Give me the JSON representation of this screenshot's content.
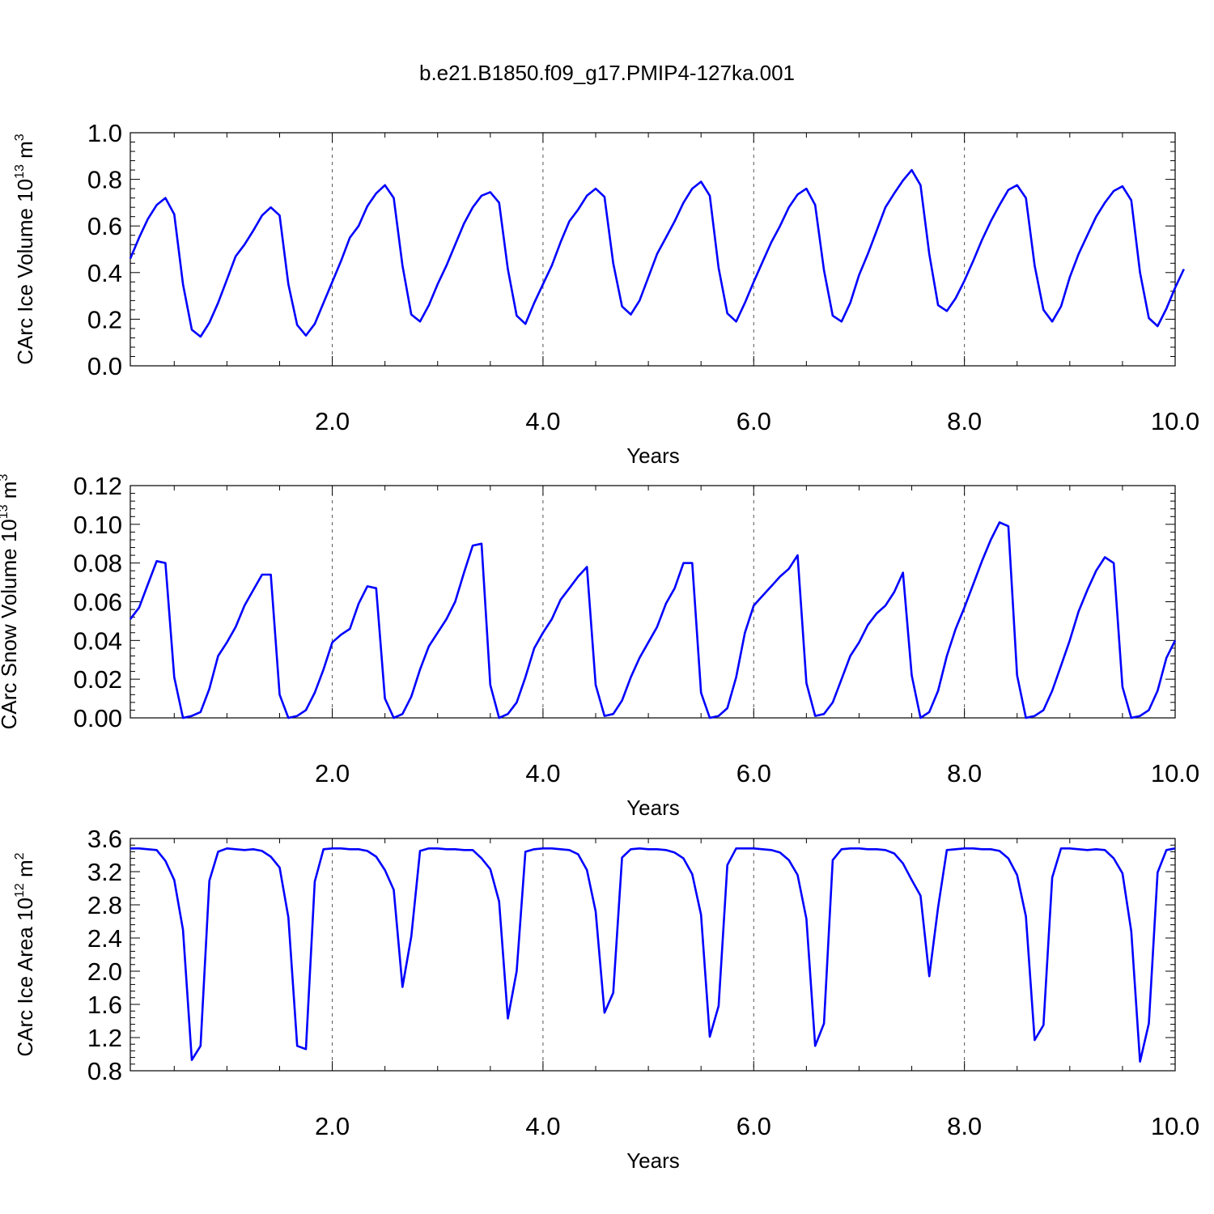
{
  "title": "b.e21.B1850.f09_g17.PMIP4-127ka.001",
  "colors": {
    "line": "#0000ff",
    "axis": "#000000",
    "grid": "#555555"
  },
  "chart_data": [
    {
      "type": "line",
      "ylabel": "CArc Ice Volume 10",
      "ylabel_sup": "13",
      "ylabel_unit": " m",
      "ylabel_unit_sup": "3",
      "xlabel": "Years",
      "xlim": [
        0.083,
        10.0
      ],
      "ylim": [
        0.0,
        1.0
      ],
      "xticks": [
        "2.0",
        "4.0",
        "6.0",
        "8.0",
        "10.0"
      ],
      "yticks": [
        "0.0",
        "0.2",
        "0.4",
        "0.6",
        "0.8",
        "1.0"
      ],
      "grid": "vertical dashed at major x ticks",
      "series": [
        {
          "values": [
            0.46,
            0.55,
            0.63,
            0.69,
            0.72,
            0.65,
            0.35,
            0.155,
            0.125,
            0.185,
            0.27,
            0.37,
            0.47,
            0.52,
            0.58,
            0.645,
            0.68,
            0.645,
            0.35,
            0.175,
            0.13,
            0.18,
            0.27,
            0.36,
            0.45,
            0.55,
            0.6,
            0.685,
            0.74,
            0.775,
            0.72,
            0.43,
            0.22,
            0.19,
            0.26,
            0.35,
            0.43,
            0.52,
            0.61,
            0.68,
            0.73,
            0.745,
            0.7,
            0.415,
            0.215,
            0.18,
            0.27,
            0.35,
            0.43,
            0.53,
            0.62,
            0.67,
            0.73,
            0.76,
            0.725,
            0.44,
            0.255,
            0.22,
            0.28,
            0.38,
            0.48,
            0.55,
            0.62,
            0.7,
            0.76,
            0.79,
            0.73,
            0.42,
            0.225,
            0.19,
            0.27,
            0.36,
            0.445,
            0.53,
            0.6,
            0.68,
            0.735,
            0.76,
            0.69,
            0.41,
            0.215,
            0.19,
            0.27,
            0.39,
            0.48,
            0.58,
            0.68,
            0.74,
            0.795,
            0.84,
            0.775,
            0.48,
            0.26,
            0.235,
            0.29,
            0.365,
            0.45,
            0.54,
            0.62,
            0.69,
            0.755,
            0.775,
            0.72,
            0.43,
            0.24,
            0.19,
            0.255,
            0.38,
            0.48,
            0.56,
            0.64,
            0.7,
            0.75,
            0.77,
            0.71,
            0.4,
            0.205,
            0.17,
            0.245,
            0.335,
            0.415
          ]
        }
      ]
    },
    {
      "type": "line",
      "ylabel": "CArc Snow Volume 10",
      "ylabel_sup": "13",
      "ylabel_unit": " m",
      "ylabel_unit_sup": "3",
      "xlabel": "Years",
      "xlim": [
        0.083,
        10.0
      ],
      "ylim": [
        0.0,
        0.12
      ],
      "xticks": [
        "2.0",
        "4.0",
        "6.0",
        "8.0",
        "10.0"
      ],
      "yticks": [
        "0.00",
        "0.02",
        "0.04",
        "0.06",
        "0.08",
        "0.10",
        "0.12"
      ],
      "grid": "vertical dashed at major x ticks",
      "series": [
        {
          "values": [
            0.051,
            0.057,
            0.069,
            0.081,
            0.08,
            0.021,
            0.0,
            0.001,
            0.003,
            0.015,
            0.032,
            0.039,
            0.047,
            0.058,
            0.066,
            0.074,
            0.074,
            0.012,
            0.0,
            0.001,
            0.004,
            0.013,
            0.025,
            0.039,
            0.043,
            0.046,
            0.059,
            0.068,
            0.067,
            0.01,
            0.0,
            0.002,
            0.011,
            0.025,
            0.037,
            0.044,
            0.051,
            0.06,
            0.075,
            0.089,
            0.09,
            0.017,
            0.0,
            0.002,
            0.008,
            0.021,
            0.036,
            0.044,
            0.051,
            0.061,
            0.067,
            0.073,
            0.078,
            0.017,
            0.001,
            0.002,
            0.009,
            0.021,
            0.031,
            0.039,
            0.047,
            0.059,
            0.067,
            0.08,
            0.08,
            0.013,
            0.0,
            0.001,
            0.005,
            0.021,
            0.044,
            0.058,
            0.063,
            0.068,
            0.073,
            0.077,
            0.084,
            0.018,
            0.001,
            0.002,
            0.008,
            0.02,
            0.032,
            0.039,
            0.048,
            0.054,
            0.058,
            0.065,
            0.075,
            0.022,
            0.0,
            0.003,
            0.014,
            0.032,
            0.046,
            0.057,
            0.069,
            0.081,
            0.092,
            0.101,
            0.099,
            0.022,
            0.0,
            0.001,
            0.004,
            0.014,
            0.027,
            0.04,
            0.055,
            0.066,
            0.076,
            0.083,
            0.08,
            0.016,
            0.0,
            0.001,
            0.004,
            0.014,
            0.031,
            0.04
          ]
        }
      ]
    },
    {
      "type": "line",
      "ylabel": "CArc Ice Area 10",
      "ylabel_sup": "12",
      "ylabel_unit": " m",
      "ylabel_unit_sup": "2",
      "xlabel": "Years",
      "xlim": [
        0.083,
        10.0
      ],
      "ylim": [
        0.8,
        3.6
      ],
      "xticks": [
        "2.0",
        "4.0",
        "6.0",
        "8.0",
        "10.0"
      ],
      "yticks": [
        "0.8",
        "1.2",
        "1.6",
        "2.0",
        "2.4",
        "2.8",
        "3.2",
        "3.6"
      ],
      "grid": "vertical dashed at major x ticks",
      "series": [
        {
          "values": [
            3.48,
            3.48,
            3.47,
            3.46,
            3.33,
            3.1,
            2.5,
            0.93,
            1.1,
            3.09,
            3.44,
            3.48,
            3.47,
            3.46,
            3.47,
            3.45,
            3.38,
            3.25,
            2.65,
            1.1,
            1.06,
            3.08,
            3.47,
            3.48,
            3.48,
            3.47,
            3.47,
            3.45,
            3.38,
            3.22,
            2.98,
            1.81,
            2.42,
            3.45,
            3.48,
            3.48,
            3.47,
            3.47,
            3.46,
            3.46,
            3.36,
            3.23,
            2.84,
            1.43,
            2.0,
            3.44,
            3.47,
            3.48,
            3.48,
            3.47,
            3.46,
            3.41,
            3.22,
            2.72,
            1.5,
            1.74,
            3.37,
            3.47,
            3.48,
            3.47,
            3.47,
            3.46,
            3.43,
            3.36,
            3.17,
            2.68,
            1.21,
            1.58,
            3.28,
            3.48,
            3.48,
            3.48,
            3.47,
            3.46,
            3.43,
            3.34,
            3.16,
            2.63,
            1.1,
            1.37,
            3.34,
            3.47,
            3.48,
            3.48,
            3.47,
            3.47,
            3.46,
            3.42,
            3.3,
            3.1,
            2.91,
            1.94,
            2.77,
            3.46,
            3.47,
            3.48,
            3.48,
            3.47,
            3.47,
            3.45,
            3.36,
            3.16,
            2.66,
            1.17,
            1.35,
            3.13,
            3.48,
            3.48,
            3.47,
            3.46,
            3.47,
            3.46,
            3.36,
            3.18,
            2.48,
            0.91,
            1.37,
            3.19,
            3.46,
            3.48
          ]
        }
      ]
    }
  ]
}
